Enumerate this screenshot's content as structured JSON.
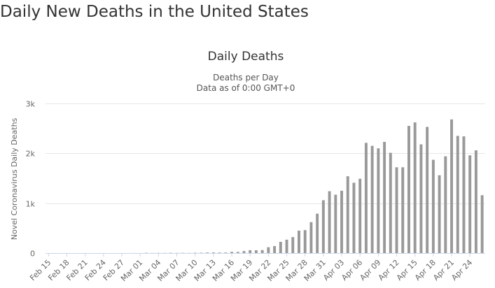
{
  "page_title": "Daily New Deaths in the United States",
  "chart_data": {
    "type": "bar",
    "title": "Daily Deaths",
    "subtitle_lines": [
      "Deaths per Day",
      "Data as of 0:00 GMT+0"
    ],
    "xlabel": "",
    "ylabel": "Novel Coronavirus Daily Deaths",
    "ylim": [
      0,
      3000
    ],
    "yticks": [
      {
        "value": 0,
        "label": "0"
      },
      {
        "value": 1000,
        "label": "1k"
      },
      {
        "value": 2000,
        "label": "2k"
      },
      {
        "value": 3000,
        "label": "3k"
      }
    ],
    "grid": true,
    "legend": "none",
    "bar_color": "#999999",
    "categories": [
      "Feb 15",
      "Feb 16",
      "Feb 17",
      "Feb 18",
      "Feb 19",
      "Feb 20",
      "Feb 21",
      "Feb 22",
      "Feb 23",
      "Feb 24",
      "Feb 25",
      "Feb 26",
      "Feb 27",
      "Feb 28",
      "Feb 29",
      "Mar 01",
      "Mar 02",
      "Mar 03",
      "Mar 04",
      "Mar 05",
      "Mar 06",
      "Mar 07",
      "Mar 08",
      "Mar 09",
      "Mar 10",
      "Mar 11",
      "Mar 12",
      "Mar 13",
      "Mar 14",
      "Mar 15",
      "Mar 16",
      "Mar 17",
      "Mar 18",
      "Mar 19",
      "Mar 20",
      "Mar 21",
      "Mar 22",
      "Mar 23",
      "Mar 24",
      "Mar 25",
      "Mar 26",
      "Mar 27",
      "Mar 28",
      "Mar 29",
      "Mar 30",
      "Mar 31",
      "Apr 01",
      "Apr 02",
      "Apr 03",
      "Apr 04",
      "Apr 05",
      "Apr 06",
      "Apr 07",
      "Apr 08",
      "Apr 09",
      "Apr 10",
      "Apr 11",
      "Apr 12",
      "Apr 13",
      "Apr 14",
      "Apr 15",
      "Apr 16",
      "Apr 17",
      "Apr 18",
      "Apr 19",
      "Apr 20",
      "Apr 21",
      "Apr 22",
      "Apr 23",
      "Apr 24",
      "Apr 25",
      "Apr 26"
    ],
    "tick_labels": [
      "Feb 15",
      "Feb 18",
      "Feb 21",
      "Feb 24",
      "Feb 27",
      "Mar 01",
      "Mar 04",
      "Mar 07",
      "Mar 10",
      "Mar 13",
      "Mar 16",
      "Mar 19",
      "Mar 22",
      "Mar 25",
      "Mar 28",
      "Mar 31",
      "Apr 03",
      "Apr 06",
      "Apr 09",
      "Apr 12",
      "Apr 15",
      "Apr 18",
      "Apr 21",
      "Apr 24"
    ],
    "values": [
      0,
      0,
      0,
      0,
      0,
      0,
      0,
      0,
      0,
      0,
      0,
      0,
      0,
      0,
      1,
      0,
      5,
      2,
      3,
      3,
      5,
      3,
      4,
      3,
      6,
      6,
      10,
      12,
      10,
      11,
      24,
      23,
      40,
      57,
      56,
      60,
      117,
      140,
      225,
      268,
      320,
      450,
      460,
      620,
      790,
      1060,
      1240,
      1170,
      1250,
      1540,
      1410,
      1490,
      2210,
      2150,
      2100,
      2230,
      2010,
      1720,
      1720,
      2550,
      2620,
      2180,
      2530,
      1870,
      1560,
      1940,
      2680,
      2350,
      2340,
      1960,
      2060,
      1160
    ]
  }
}
